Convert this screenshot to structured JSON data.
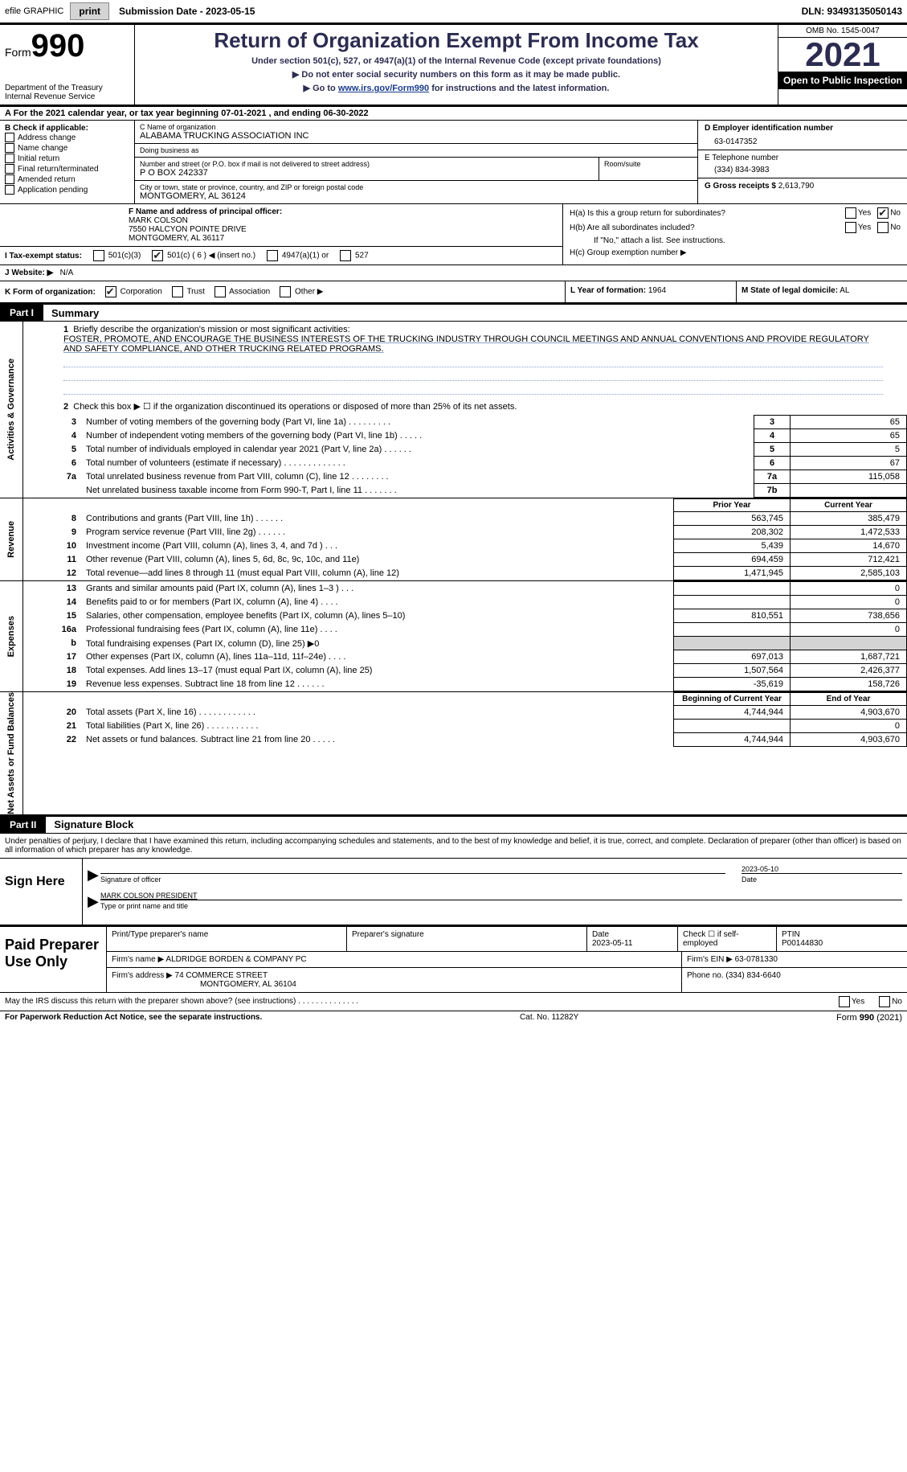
{
  "top_bar": {
    "efile_label": "efile GRAPHIC",
    "print_btn": "print",
    "submission_label": "Submission Date - 2023-05-15",
    "dln": "DLN: 93493135050143"
  },
  "header": {
    "form_word": "Form",
    "form_number": "990",
    "dept": "Department of the Treasury Internal Revenue Service",
    "title": "Return of Organization Exempt From Income Tax",
    "subtitle": "Under section 501(c), 527, or 4947(a)(1) of the Internal Revenue Code (except private foundations)",
    "note1": "▶ Do not enter social security numbers on this form as it may be made public.",
    "note2_pre": "▶ Go to ",
    "note2_link": "www.irs.gov/Form990",
    "note2_post": " for instructions and the latest information.",
    "omb": "OMB No. 1545-0047",
    "year": "2021",
    "open": "Open to Public Inspection"
  },
  "line_a": "A  For the 2021 calendar year, or tax year beginning 07-01-2021   , and ending 06-30-2022",
  "col_b": {
    "label": "B Check if applicable:",
    "items": [
      "Address change",
      "Name change",
      "Initial return",
      "Final return/terminated",
      "Amended return",
      "Application pending"
    ]
  },
  "col_c": {
    "name_label": "C Name of organization",
    "name": "ALABAMA TRUCKING ASSOCIATION INC",
    "dba_label": "Doing business as",
    "dba": "",
    "street_label": "Number and street (or P.O. box if mail is not delivered to street address)",
    "street": "P O BOX 242337",
    "room_label": "Room/suite",
    "room": "",
    "city_label": "City or town, state or province, country, and ZIP or foreign postal code",
    "city": "MONTGOMERY, AL  36124"
  },
  "col_de": {
    "d_label": "D Employer identification number",
    "d_val": "63-0147352",
    "e_label": "E Telephone number",
    "e_val": "(334) 834-3983",
    "g_label": "G Gross receipts $",
    "g_val": "2,613,790"
  },
  "block_f": {
    "f_label": "F Name and address of principal officer:",
    "f_name": "MARK COLSON",
    "f_addr1": "7550 HALCYON POINTE DRIVE",
    "f_addr2": "MONTGOMERY, AL  36117",
    "i_label": "I  Tax-exempt status:",
    "i_501c3": "501(c)(3)",
    "i_501c": "501(c) ( 6 ) ◀ (insert no.)",
    "i_4947": "4947(a)(1) or",
    "i_527": "527",
    "ha_label": "H(a)  Is this a group return for subordinates?",
    "hb_label": "H(b)  Are all subordinates included?",
    "hb_note": "If \"No,\" attach a list. See instructions.",
    "hc_label": "H(c)  Group exemption number ▶",
    "yes": "Yes",
    "no": "No"
  },
  "row_j": {
    "j_label": "J  Website: ▶",
    "j_val": "N/A"
  },
  "row_k": {
    "k_label": "K Form of organization:",
    "corp": "Corporation",
    "trust": "Trust",
    "assoc": "Association",
    "other": "Other ▶",
    "l_label": "L Year of formation:",
    "l_val": "1964",
    "m_label": "M State of legal domicile:",
    "m_val": "AL"
  },
  "part1": {
    "badge": "Part I",
    "title": "Summary",
    "tabs": {
      "ag": "Activities & Governance",
      "rev": "Revenue",
      "exp": "Expenses",
      "na": "Net Assets or Fund Balances"
    },
    "line1_label": "Briefly describe the organization's mission or most significant activities:",
    "line1_text": "FOSTER, PROMOTE, AND ENCOURAGE THE BUSINESS INTERESTS OF THE TRUCKING INDUSTRY THROUGH COUNCIL MEETINGS AND ANNUAL CONVENTIONS AND PROVIDE REGULATORY AND SAFETY COMPLIANCE, AND OTHER TRUCKING RELATED PROGRAMS.",
    "line2": "Check this box ▶ ☐  if the organization discontinued its operations or disposed of more than 25% of its net assets.",
    "ag_lines": [
      {
        "n": "3",
        "desc": "Number of voting members of the governing body (Part VI, line 1a)   .    .    .    .    .    .    .    .    .",
        "box": "3",
        "val": "65"
      },
      {
        "n": "4",
        "desc": "Number of independent voting members of the governing body (Part VI, line 1b)    .    .    .    .    .",
        "box": "4",
        "val": "65"
      },
      {
        "n": "5",
        "desc": "Total number of individuals employed in calendar year 2021 (Part V, line 2a)    .    .    .    .    .    .",
        "box": "5",
        "val": "5"
      },
      {
        "n": "6",
        "desc": "Total number of volunteers (estimate if necessary)    .    .    .    .    .    .    .    .    .    .    .    .    .",
        "box": "6",
        "val": "67"
      },
      {
        "n": "7a",
        "desc": "Total unrelated business revenue from Part VIII, column (C), line 12    .    .    .    .    .    .    .    .",
        "box": "7a",
        "val": "115,058"
      },
      {
        "n": "",
        "desc": "Net unrelated business taxable income from Form 990-T, Part I, line 11    .    .    .    .    .    .    .",
        "box": "7b",
        "val": ""
      }
    ],
    "hdr_prior": "Prior Year",
    "hdr_current": "Current Year",
    "rev_lines": [
      {
        "n": "8",
        "desc": "Contributions and grants (Part VIII, line 1h)    .    .    .    .    .    .",
        "prior": "563,745",
        "curr": "385,479"
      },
      {
        "n": "9",
        "desc": "Program service revenue (Part VIII, line 2g)    .    .    .    .    .    .",
        "prior": "208,302",
        "curr": "1,472,533"
      },
      {
        "n": "10",
        "desc": "Investment income (Part VIII, column (A), lines 3, 4, and 7d )    .    .    .",
        "prior": "5,439",
        "curr": "14,670"
      },
      {
        "n": "11",
        "desc": "Other revenue (Part VIII, column (A), lines 5, 6d, 8c, 9c, 10c, and 11e)",
        "prior": "694,459",
        "curr": "712,421"
      },
      {
        "n": "12",
        "desc": "Total revenue—add lines 8 through 11 (must equal Part VIII, column (A), line 12)",
        "prior": "1,471,945",
        "curr": "2,585,103"
      }
    ],
    "exp_lines": [
      {
        "n": "13",
        "desc": "Grants and similar amounts paid (Part IX, column (A), lines 1–3 )    .    .    .",
        "prior": "",
        "curr": "0"
      },
      {
        "n": "14",
        "desc": "Benefits paid to or for members (Part IX, column (A), line 4)    .    .    .    .",
        "prior": "",
        "curr": "0"
      },
      {
        "n": "15",
        "desc": "Salaries, other compensation, employee benefits (Part IX, column (A), lines 5–10)",
        "prior": "810,551",
        "curr": "738,656"
      },
      {
        "n": "16a",
        "desc": "Professional fundraising fees (Part IX, column (A), line 11e)    .    .    .    .",
        "prior": "",
        "curr": "0"
      },
      {
        "n": "b",
        "desc": "Total fundraising expenses (Part IX, column (D), line 25) ▶0",
        "prior": "SHADE",
        "curr": "SHADE"
      },
      {
        "n": "17",
        "desc": "Other expenses (Part IX, column (A), lines 11a–11d, 11f–24e)    .    .    .    .",
        "prior": "697,013",
        "curr": "1,687,721"
      },
      {
        "n": "18",
        "desc": "Total expenses. Add lines 13–17 (must equal Part IX, column (A), line 25)",
        "prior": "1,507,564",
        "curr": "2,426,377"
      },
      {
        "n": "19",
        "desc": "Revenue less expenses. Subtract line 18 from line 12    .    .    .    .    .    .",
        "prior": "-35,619",
        "curr": "158,726"
      }
    ],
    "hdr_boy": "Beginning of Current Year",
    "hdr_eoy": "End of Year",
    "na_lines": [
      {
        "n": "20",
        "desc": "Total assets (Part X, line 16)    .    .    .    .    .    .    .    .    .    .    .    .",
        "prior": "4,744,944",
        "curr": "4,903,670"
      },
      {
        "n": "21",
        "desc": "Total liabilities (Part X, line 26)    .    .    .    .    .    .    .    .    .    .    .",
        "prior": "",
        "curr": "0"
      },
      {
        "n": "22",
        "desc": "Net assets or fund balances. Subtract line 21 from line 20    .    .    .    .    .",
        "prior": "4,744,944",
        "curr": "4,903,670"
      }
    ]
  },
  "part2": {
    "badge": "Part II",
    "title": "Signature Block",
    "intro": "Under penalties of perjury, I declare that I have examined this return, including accompanying schedules and statements, and to the best of my knowledge and belief, it is true, correct, and complete. Declaration of preparer (other than officer) is based on all information of which preparer has any knowledge.",
    "sign_here": "Sign Here",
    "sig_officer_label": "Signature of officer",
    "sig_date": "2023-05-10",
    "date_label": "Date",
    "officer_name": "MARK COLSON PRESIDENT",
    "officer_name_label": "Type or print name and title",
    "paid": "Paid Preparer Use Only",
    "prep_name_label": "Print/Type preparer's name",
    "prep_sig_label": "Preparer's signature",
    "prep_date_label": "Date",
    "prep_date": "2023-05-11",
    "check_se": "Check ☐ if self-employed",
    "ptin_label": "PTIN",
    "ptin": "P00144830",
    "firm_name_label": "Firm's name    ▶",
    "firm_name": "ALDRIDGE BORDEN & COMPANY PC",
    "firm_ein_label": "Firm's EIN ▶",
    "firm_ein": "63-0781330",
    "firm_addr_label": "Firm's address ▶",
    "firm_addr1": "74 COMMERCE STREET",
    "firm_addr2": "MONTGOMERY, AL  36104",
    "firm_phone_label": "Phone no.",
    "firm_phone": "(334) 834-6640",
    "discuss": "May the IRS discuss this return with the preparer shown above? (see instructions)    .     .    .    .    .    .    .    .    .    .    .    .    .    .",
    "paperwork": "For Paperwork Reduction Act Notice, see the separate instructions.",
    "cat": "Cat. No. 11282Y",
    "form_foot": "Form 990 (2021)"
  }
}
